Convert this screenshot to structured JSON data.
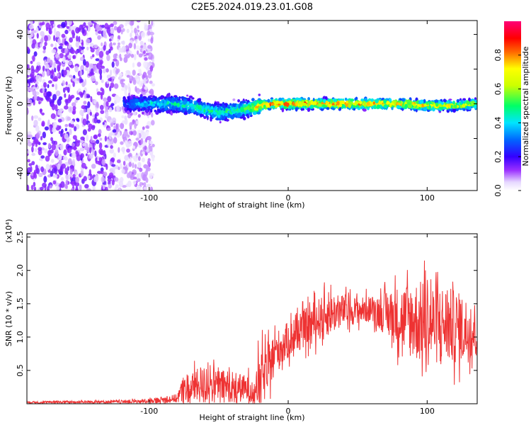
{
  "title": "C2E5.2024.019.23.01.G08",
  "chart_data": [
    {
      "type": "heatmap",
      "name": "spectrogram",
      "xlabel": "Height of straight line (km)",
      "ylabel": "Frequency (Hz)",
      "xlim": [
        -188,
        136
      ],
      "ylim": [
        -50,
        48
      ],
      "xticks": [
        -100,
        0,
        100
      ],
      "xtick_labels": [
        "-100",
        "0",
        "100"
      ],
      "yticks": [
        -40,
        -20,
        0,
        20,
        40
      ],
      "ytick_labels": [
        "-40",
        "-20",
        "0",
        "20",
        "40"
      ],
      "description_trace": {
        "x": [
          -118,
          -100,
          -80,
          -65,
          -50,
          -40,
          -30,
          -20,
          -10,
          0,
          20,
          40,
          60,
          80,
          100,
          120,
          136
        ],
        "y": [
          0,
          0,
          0,
          -2,
          -5,
          -4,
          -3,
          -1,
          0,
          0,
          0,
          0,
          0,
          0,
          -1,
          -1,
          0
        ],
        "peak_amplitude": [
          0.35,
          0.45,
          0.5,
          0.55,
          0.55,
          0.55,
          0.6,
          0.85,
          0.9,
          0.95,
          0.9,
          0.9,
          0.9,
          0.85,
          0.8,
          0.75,
          0.7
        ]
      },
      "noise_region_x": [
        -188,
        -105
      ]
    },
    {
      "type": "colorbar",
      "name": "amplitude-colorbar",
      "label": "Normalized spectral amplitude",
      "range": [
        0,
        1
      ],
      "ticks": [
        0,
        0.2,
        0.4,
        0.6,
        0.8
      ],
      "tick_labels": [
        "0.0",
        "0.2",
        "0.4",
        "0.6",
        "0.8"
      ]
    },
    {
      "type": "line",
      "name": "snr",
      "xlabel": "Height of straight line (km)",
      "ylabel": "SNR (10 * v/v)",
      "yscale_label": "(x10⁴)",
      "xlim": [
        -188,
        136
      ],
      "ylim": [
        0,
        2.55
      ],
      "xticks": [
        -100,
        0,
        100
      ],
      "xtick_labels": [
        "-100",
        "0",
        "100"
      ],
      "yticks": [
        0.5,
        1.0,
        1.5,
        2.0,
        2.5
      ],
      "ytick_labels": [
        "0.5",
        "1.0",
        "1.5",
        "2.0",
        "2.5"
      ],
      "color": "#ee3333",
      "envelope": {
        "x": [
          -188,
          -120,
          -100,
          -90,
          -80,
          -75,
          -70,
          -60,
          -50,
          -40,
          -30,
          -25,
          -20,
          -15,
          -10,
          0,
          10,
          20,
          30,
          40,
          50,
          60,
          70,
          80,
          90,
          100,
          110,
          120,
          130,
          136
        ],
        "mean": [
          0.02,
          0.03,
          0.04,
          0.06,
          0.08,
          0.22,
          0.25,
          0.28,
          0.27,
          0.26,
          0.22,
          0.22,
          0.35,
          0.5,
          0.75,
          0.95,
          1.1,
          1.25,
          1.35,
          1.4,
          1.4,
          1.42,
          1.35,
          1.3,
          1.25,
          1.2,
          1.2,
          1.15,
          1.1,
          1.1
        ],
        "spread": [
          0.02,
          0.03,
          0.05,
          0.06,
          0.08,
          0.3,
          0.3,
          0.35,
          0.3,
          0.3,
          0.25,
          0.3,
          0.6,
          0.45,
          0.4,
          0.35,
          0.35,
          0.4,
          0.4,
          0.3,
          0.25,
          0.25,
          0.4,
          0.6,
          0.75,
          0.8,
          0.75,
          0.7,
          0.6,
          0.55
        ]
      }
    }
  ]
}
